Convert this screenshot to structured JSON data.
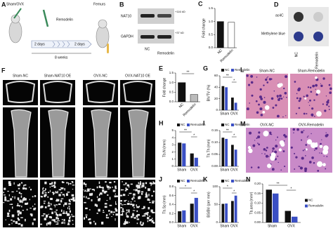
{
  "panels": {
    "A": {
      "letter": "A",
      "sham_ovx": "Sham/OVX",
      "remodelin": "Remodelin",
      "femurs": "Femurs",
      "day1": "2 days",
      "day2": "2 days",
      "weeks": "8 weeks"
    },
    "B": {
      "letter": "B",
      "nat10": "NAT10",
      "gapdh": "GAPDH",
      "kd1": "+116 kD",
      "kd2": "+37 kD",
      "nc": "NC",
      "remodelin": "Remodelin"
    },
    "D": {
      "letter": "D",
      "ac4c": "ac4C",
      "methylene": "Methylene blue",
      "nc": "NC",
      "remodelin": "Remodelin"
    },
    "F": {
      "letter": "F",
      "labels": [
        "Sham-NC",
        "Sham-NAT10 OE",
        "OVX-NC",
        "OVX-NAT10 OE"
      ]
    },
    "L": {
      "letter": "L",
      "labels": [
        "Sham-NC",
        "Sham-Remodelin"
      ]
    },
    "M": {
      "letter": "M",
      "labels": [
        "OVX-NC",
        "OVX-Remodelin"
      ]
    }
  },
  "chart_data": [
    {
      "type": "bar",
      "label": "C",
      "y_label": "Fold change",
      "categories": [
        "NC",
        "Remodelin"
      ],
      "values": [
        1.0,
        0.97
      ],
      "colors": [
        "#111111",
        "#ffffff"
      ],
      "ylim": [
        0,
        1.5
      ],
      "yticks": [
        {
          "value": 0,
          "label": "0.0"
        },
        {
          "value": 0.5,
          "label": "0.5"
        },
        {
          "value": 1,
          "label": "1.0"
        },
        {
          "value": 1.5,
          "label": "1.5"
        }
      ]
    },
    {
      "type": "bar",
      "label": "E",
      "y_label": "Fold change",
      "categories": [
        "NC",
        "Remodelin"
      ],
      "values": [
        1.0,
        0.38
      ],
      "colors": [
        "#111111",
        "#bbbbbb"
      ],
      "ylim": [
        0,
        1.5
      ],
      "yticks": [
        {
          "value": 0,
          "label": "0.0"
        },
        {
          "value": 0.5,
          "label": "0.5"
        },
        {
          "value": 1,
          "label": "1.0"
        },
        {
          "value": 1.5,
          "label": "1.5"
        }
      ],
      "annotations": [
        "**"
      ]
    },
    {
      "type": "grouped_bar",
      "label": "G",
      "y_label": "BV/TV (%)",
      "categories": [
        "Sham",
        "OVX"
      ],
      "series": [
        {
          "name": "NC",
          "color": "#111111",
          "values": [
            42,
            22
          ]
        },
        {
          "name": "Remodelin",
          "color": "#3a4fc4",
          "values": [
            40,
            13
          ]
        }
      ],
      "ylim": [
        0,
        60
      ],
      "yticks": [
        0,
        20,
        40,
        60
      ],
      "legend": "top",
      "annotations": [
        "**",
        "*"
      ]
    },
    {
      "type": "grouped_bar",
      "label": "H",
      "y_label": "Tb.N (/mm)",
      "categories": [
        "Sham",
        "OVX"
      ],
      "series": [
        {
          "name": "NC",
          "color": "#111111",
          "values": [
            3.3,
            1.8
          ]
        },
        {
          "name": "Remodelin",
          "color": "#3a4fc4",
          "values": [
            3.2,
            1.2
          ]
        }
      ],
      "ylim": [
        0,
        5
      ],
      "yticks": [
        0,
        1,
        2,
        3,
        4,
        5
      ],
      "legend": "top",
      "annotations": [
        "**",
        "*"
      ]
    },
    {
      "type": "grouped_bar",
      "label": "I",
      "y_label": "Tb.Th (mm)",
      "categories": [
        "Sham",
        "OVX"
      ],
      "series": [
        {
          "name": "NC",
          "color": "#111111",
          "values": [
            0.12,
            0.09
          ]
        },
        {
          "name": "Remodelin",
          "color": "#3a4fc4",
          "values": [
            0.115,
            0.07
          ]
        }
      ],
      "ylim": [
        0,
        0.15
      ],
      "yticks": [
        {
          "value": 0,
          "label": "0.00"
        },
        {
          "value": 0.05,
          "label": "0.05"
        },
        {
          "value": 0.1,
          "label": "0.10"
        },
        {
          "value": 0.15,
          "label": "0.15"
        }
      ],
      "legend": "top",
      "annotations": [
        "**",
        "*"
      ]
    },
    {
      "type": "grouped_bar",
      "label": "J",
      "y_label": "Tb.Sp (mm)",
      "categories": [
        "Sham",
        "OVX"
      ],
      "series": [
        {
          "name": "NC",
          "color": "#111111",
          "values": [
            0.25,
            0.42
          ]
        },
        {
          "name": "Remodelin",
          "color": "#3a4fc4",
          "values": [
            0.27,
            0.55
          ]
        }
      ],
      "ylim": [
        0,
        0.8
      ],
      "yticks": [
        {
          "value": 0,
          "label": "0.0"
        },
        {
          "value": 0.2,
          "label": "0.2"
        },
        {
          "value": 0.4,
          "label": "0.4"
        },
        {
          "value": 0.6,
          "label": "0.6"
        },
        {
          "value": 0.8,
          "label": "0.8"
        }
      ],
      "legend": "top",
      "annotations": [
        "*",
        "*"
      ]
    },
    {
      "type": "grouped_bar",
      "label": "K",
      "y_label": "BS/BV (per mm)",
      "categories": [
        "Sham",
        "OVX"
      ],
      "series": [
        {
          "name": "NC",
          "color": "#111111",
          "values": [
            52,
            60
          ]
        },
        {
          "name": "Remodelin",
          "color": "#3a4fc4",
          "values": [
            53,
            75
          ]
        }
      ],
      "ylim": [
        0,
        100
      ],
      "yticks": [
        0,
        50,
        100
      ],
      "legend": "top",
      "annotations": [
        "*",
        "*"
      ]
    },
    {
      "type": "grouped_bar",
      "label": "N",
      "y_label": "Tb.area (mm²)",
      "categories": [
        "Sham",
        "OVX"
      ],
      "series": [
        {
          "name": "NC",
          "color": "#111111",
          "values": [
            0.17,
            0.06
          ]
        },
        {
          "name": "Remodelin",
          "color": "#3a4fc4",
          "values": [
            0.15,
            0.03
          ]
        }
      ],
      "ylim": [
        0,
        0.2
      ],
      "yticks": [
        {
          "value": 0,
          "label": "0.00"
        },
        {
          "value": 0.05,
          "label": "0.05"
        },
        {
          "value": 0.1,
          "label": "0.10"
        },
        {
          "value": 0.15,
          "label": "0.15"
        },
        {
          "value": 0.2,
          "label": "0.20"
        }
      ],
      "legend": "right",
      "annotations": [
        "**",
        "*"
      ]
    }
  ]
}
